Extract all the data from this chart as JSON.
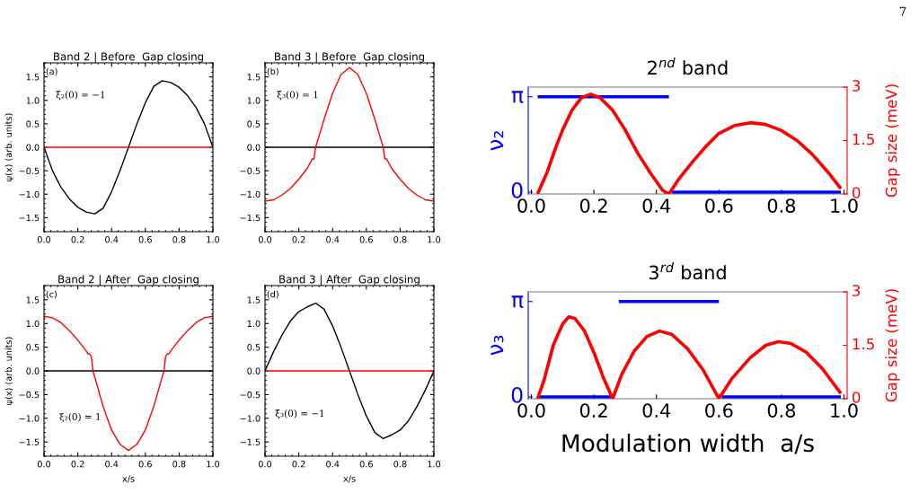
{
  "chart_data": [
    {
      "type": "line",
      "title": "Band 2 | Before  Gap closing",
      "ylabel": "ψ(x) (arb. units)",
      "annotations": [
        "(a)",
        "ξ₂(0) = −1"
      ],
      "xlim": [
        0,
        1
      ],
      "xticks": [
        {
          "value": 0,
          "label": "0.0"
        },
        {
          "value": 0.2,
          "label": "0.2"
        },
        {
          "value": 0.4,
          "label": "0.4"
        },
        {
          "value": 0.6,
          "label": "0.6"
        },
        {
          "value": 0.8,
          "label": "0.8"
        },
        {
          "value": 1,
          "label": "1.0"
        }
      ],
      "ylim": [
        -1.8,
        1.8
      ],
      "yticks": [
        {
          "value": -1.5,
          "label": "−1.5"
        },
        {
          "value": -1,
          "label": "−1.0"
        },
        {
          "value": -0.5,
          "label": "−0.5"
        },
        {
          "value": 0,
          "label": "0.0"
        },
        {
          "value": 0.5,
          "label": "0.5"
        },
        {
          "value": 1,
          "label": "1.0"
        },
        {
          "value": 1.5,
          "label": "1.5"
        }
      ],
      "series": [
        {
          "color": "#ff0000",
          "x": [
            0,
            1
          ],
          "values": [
            0,
            0
          ]
        },
        {
          "color": "#000000",
          "x": [
            0,
            0.05,
            0.1,
            0.15,
            0.2,
            0.25,
            0.3,
            0.35,
            0.4,
            0.45,
            0.5,
            0.55,
            0.6,
            0.65,
            0.7,
            0.75,
            0.8,
            0.85,
            0.9,
            0.95,
            1
          ],
          "values": [
            0,
            -0.5,
            -0.85,
            -1.1,
            -1.28,
            -1.38,
            -1.42,
            -1.3,
            -0.95,
            -0.5,
            0,
            0.5,
            0.95,
            1.3,
            1.42,
            1.38,
            1.28,
            1.1,
            0.85,
            0.5,
            0
          ]
        }
      ]
    },
    {
      "type": "line",
      "title": "Band 3 | Before  Gap closing",
      "annotations": [
        "(b)",
        "ξ₃(0) = 1"
      ],
      "xlim": [
        0,
        1
      ],
      "xticks": [
        {
          "value": 0,
          "label": "0.0"
        },
        {
          "value": 0.2,
          "label": "0.2"
        },
        {
          "value": 0.4,
          "label": "0.4"
        },
        {
          "value": 0.6,
          "label": "0.6"
        },
        {
          "value": 0.8,
          "label": "0.8"
        },
        {
          "value": 1,
          "label": "1.0"
        }
      ],
      "ylim": [
        -1.8,
        1.8
      ],
      "yticks": [
        {
          "value": -1.5,
          "label": "−1.5"
        },
        {
          "value": -1,
          "label": "−1.0"
        },
        {
          "value": -0.5,
          "label": "−0.5"
        },
        {
          "value": 0,
          "label": "0.0"
        },
        {
          "value": 0.5,
          "label": "0.5"
        },
        {
          "value": 1,
          "label": "1.0"
        },
        {
          "value": 1.5,
          "label": "1.5"
        }
      ],
      "series": [
        {
          "color": "#000000",
          "x": [
            0,
            1
          ],
          "values": [
            0,
            0
          ]
        },
        {
          "color": "#ff0000",
          "x": [
            0,
            0.05,
            0.1,
            0.15,
            0.2,
            0.25,
            0.28,
            0.29,
            0.3,
            0.35,
            0.4,
            0.45,
            0.5,
            0.55,
            0.6,
            0.65,
            0.7,
            0.71,
            0.72,
            0.75,
            0.8,
            0.85,
            0.9,
            0.95,
            1
          ],
          "values": [
            -1.15,
            -1.12,
            -1.02,
            -0.88,
            -0.68,
            -0.45,
            -0.25,
            -0.25,
            0,
            0.6,
            1.15,
            1.55,
            1.7,
            1.55,
            1.15,
            0.6,
            0,
            -0.25,
            -0.25,
            -0.45,
            -0.68,
            -0.88,
            -1.02,
            -1.12,
            -1.15
          ]
        }
      ]
    },
    {
      "type": "line",
      "title": "Band 2 | After  Gap closing",
      "xlabel": "x/s",
      "ylabel": "ψ(x) (arb. units)",
      "annotations": [
        "(c)",
        "ξ₂(0) = 1"
      ],
      "xlim": [
        0,
        1
      ],
      "xticks": [
        {
          "value": 0,
          "label": "0.0"
        },
        {
          "value": 0.2,
          "label": "0.2"
        },
        {
          "value": 0.4,
          "label": "0.4"
        },
        {
          "value": 0.6,
          "label": "0.6"
        },
        {
          "value": 0.8,
          "label": "0.8"
        },
        {
          "value": 1,
          "label": "1.0"
        }
      ],
      "ylim": [
        -1.8,
        1.8
      ],
      "yticks": [
        {
          "value": -1.5,
          "label": "−1.5"
        },
        {
          "value": -1,
          "label": "−1.0"
        },
        {
          "value": -0.5,
          "label": "−0.5"
        },
        {
          "value": 0,
          "label": "0.0"
        },
        {
          "value": 0.5,
          "label": "0.5"
        },
        {
          "value": 1,
          "label": "1.0"
        },
        {
          "value": 1.5,
          "label": "1.5"
        }
      ],
      "series": [
        {
          "color": "#000000",
          "x": [
            0,
            1
          ],
          "values": [
            0,
            0
          ]
        },
        {
          "color": "#ff0000",
          "x": [
            0,
            0.05,
            0.1,
            0.15,
            0.2,
            0.25,
            0.26,
            0.27,
            0.28,
            0.29,
            0.35,
            0.4,
            0.45,
            0.5,
            0.55,
            0.6,
            0.65,
            0.71,
            0.72,
            0.73,
            0.74,
            0.75,
            0.8,
            0.85,
            0.9,
            0.95,
            1
          ],
          "values": [
            1.15,
            1.12,
            1.02,
            0.85,
            0.65,
            0.42,
            0.36,
            0.36,
            0.3,
            0,
            -0.75,
            -1.25,
            -1.55,
            -1.68,
            -1.55,
            -1.25,
            -0.75,
            0,
            0.3,
            0.36,
            0.36,
            0.42,
            0.65,
            0.85,
            1.02,
            1.12,
            1.15
          ]
        }
      ]
    },
    {
      "type": "line",
      "title": "Band 3 | After  Gap closing",
      "xlabel": "x/s",
      "annotations": [
        "(d)",
        "ξ₃(0) = −1"
      ],
      "xlim": [
        0,
        1
      ],
      "xticks": [
        {
          "value": 0,
          "label": "0.0"
        },
        {
          "value": 0.2,
          "label": "0.2"
        },
        {
          "value": 0.4,
          "label": "0.4"
        },
        {
          "value": 0.6,
          "label": "0.6"
        },
        {
          "value": 0.8,
          "label": "0.8"
        },
        {
          "value": 1,
          "label": "1.0"
        }
      ],
      "ylim": [
        -1.8,
        1.8
      ],
      "yticks": [
        {
          "value": -1.5,
          "label": "−1.5"
        },
        {
          "value": -1,
          "label": "−1.0"
        },
        {
          "value": -0.5,
          "label": "−0.5"
        },
        {
          "value": 0,
          "label": "0.0"
        },
        {
          "value": 0.5,
          "label": "0.5"
        },
        {
          "value": 1,
          "label": "1.0"
        },
        {
          "value": 1.5,
          "label": "1.5"
        }
      ],
      "series": [
        {
          "color": "#ff0000",
          "x": [
            0,
            1
          ],
          "values": [
            0,
            0
          ]
        },
        {
          "color": "#000000",
          "x": [
            0,
            0.05,
            0.1,
            0.15,
            0.2,
            0.25,
            0.3,
            0.35,
            0.4,
            0.45,
            0.5,
            0.55,
            0.6,
            0.65,
            0.7,
            0.75,
            0.8,
            0.85,
            0.9,
            0.95,
            1
          ],
          "values": [
            0,
            0.4,
            0.75,
            1.05,
            1.25,
            1.35,
            1.43,
            1.3,
            0.95,
            0.5,
            0,
            -0.5,
            -0.95,
            -1.3,
            -1.43,
            -1.35,
            -1.25,
            -1.05,
            -0.75,
            -0.4,
            0
          ]
        }
      ]
    },
    {
      "type": "line",
      "title": "2$^{nd}$ band",
      "ylabel": "ν₂",
      "y2label": "Gap size (meV)",
      "xlim": [
        -0.01,
        1.01
      ],
      "xticks": [
        {
          "value": 0,
          "label": "0.0"
        },
        {
          "value": 0.2,
          "label": "0.2"
        },
        {
          "value": 0.4,
          "label": "0.4"
        },
        {
          "value": 0.6,
          "label": "0.6"
        },
        {
          "value": 0.8,
          "label": "0.8"
        },
        {
          "value": 1,
          "label": "1.0"
        }
      ],
      "ylim": [
        -0.06,
        3.46
      ],
      "yticks": [
        0,
        {
          "value": 3.1416,
          "label": "π"
        }
      ],
      "y2lim": [
        0,
        3
      ],
      "y2ticks": [
        0,
        1.5,
        3
      ],
      "series": [
        {
          "color": "#0000ff",
          "x": [
            0.02,
            0.44
          ],
          "values": [
            3.14,
            3.14
          ]
        },
        {
          "color": "#0000ff",
          "x": [
            0.45,
            0.99
          ],
          "values": [
            0,
            0
          ]
        },
        {
          "color": "#ff0000",
          "axis": "y2",
          "x": [
            0.02,
            0.05,
            0.08,
            0.1,
            0.13,
            0.16,
            0.19,
            0.22,
            0.26,
            0.3,
            0.34,
            0.38,
            0.42,
            0.44,
            0.47,
            0.52,
            0.56,
            0.6,
            0.65,
            0.7,
            0.75,
            0.8,
            0.85,
            0.9,
            0.95,
            0.99
          ],
          "values": [
            0,
            0.6,
            1.35,
            1.8,
            2.35,
            2.7,
            2.8,
            2.7,
            2.35,
            1.8,
            1.15,
            0.6,
            0.1,
            0,
            0.4,
            0.95,
            1.35,
            1.7,
            1.92,
            2.0,
            1.95,
            1.78,
            1.5,
            1.1,
            0.6,
            0.15
          ]
        }
      ]
    },
    {
      "type": "line",
      "title": "3$^{rd}$ band",
      "xlabel": "Modulation width  a/s",
      "ylabel": "ν₃",
      "y2label": "Gap size (meV)",
      "annotations": [
        "7"
      ],
      "xlim": [
        -0.01,
        1.01
      ],
      "xticks": [
        {
          "value": 0,
          "label": "0.0"
        },
        {
          "value": 0.2,
          "label": "0.2"
        },
        {
          "value": 0.4,
          "label": "0.4"
        },
        {
          "value": 0.6,
          "label": "0.6"
        },
        {
          "value": 0.8,
          "label": "0.8"
        },
        {
          "value": 1,
          "label": "1.0"
        }
      ],
      "ylim": [
        -0.06,
        3.46
      ],
      "yticks": [
        0,
        {
          "value": 3.1416,
          "label": "π"
        }
      ],
      "y2lim": [
        0,
        3
      ],
      "y2ticks": [
        0,
        1.5,
        3
      ],
      "series": [
        {
          "color": "#0000ff",
          "x": [
            0.02,
            0.26
          ],
          "values": [
            0,
            0
          ]
        },
        {
          "color": "#0000ff",
          "x": [
            0.28,
            0.6
          ],
          "values": [
            3.14,
            3.14
          ]
        },
        {
          "color": "#0000ff",
          "x": [
            0.61,
            0.99
          ],
          "values": [
            0,
            0
          ]
        },
        {
          "color": "#ff0000",
          "axis": "y2",
          "x": [
            0.02,
            0.04,
            0.07,
            0.1,
            0.12,
            0.14,
            0.17,
            0.2,
            0.23,
            0.26,
            0.29,
            0.33,
            0.37,
            0.41,
            0.45,
            0.5,
            0.55,
            0.6,
            0.64,
            0.7,
            0.75,
            0.79,
            0.83,
            0.88,
            0.93,
            0.99
          ],
          "values": [
            0,
            0.5,
            1.5,
            2.1,
            2.3,
            2.25,
            1.9,
            1.3,
            0.6,
            0,
            0.7,
            1.35,
            1.75,
            1.9,
            1.8,
            1.4,
            0.8,
            0,
            0.55,
            1.15,
            1.5,
            1.6,
            1.55,
            1.3,
            0.85,
            0.15
          ]
        }
      ]
    }
  ]
}
